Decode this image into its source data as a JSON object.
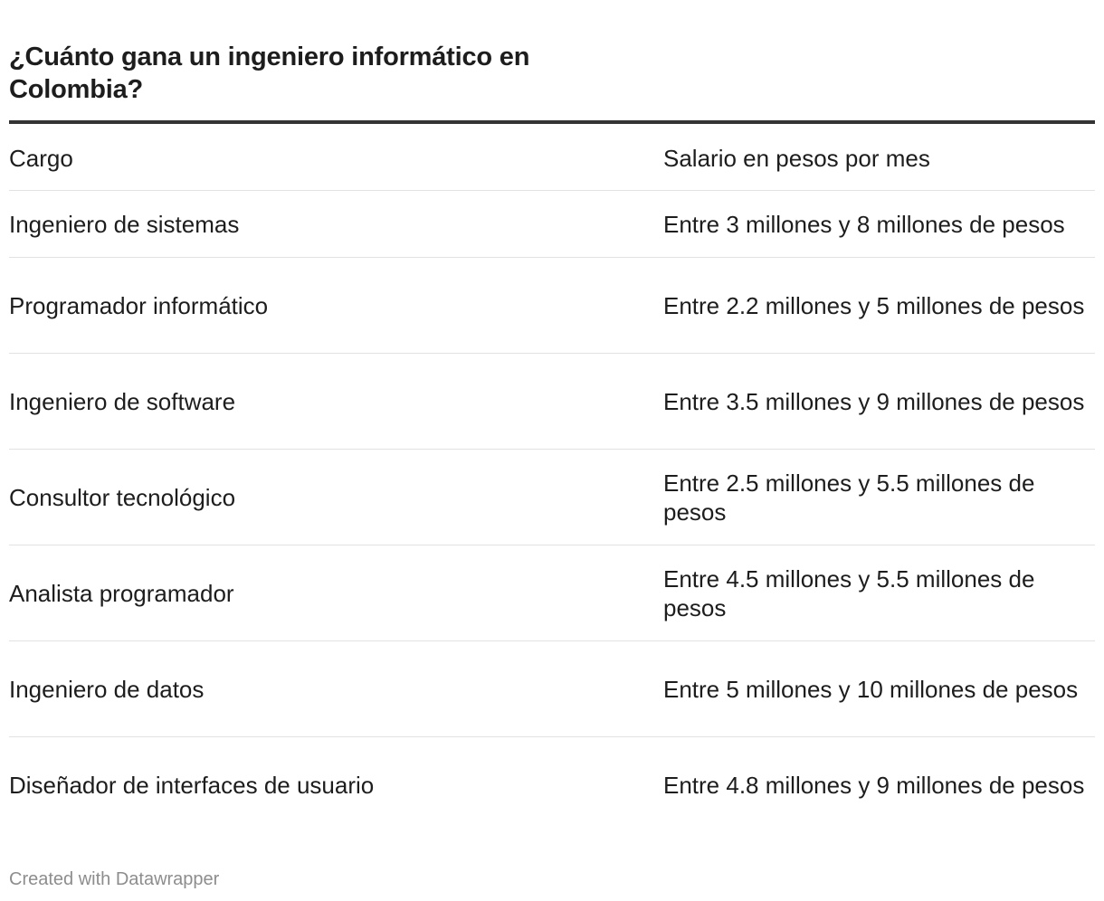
{
  "chart_data": {
    "type": "table",
    "title": "¿Cuánto gana un ingeniero informático en Colombia?",
    "columns": [
      "Cargo",
      "Salario en pesos por mes"
    ],
    "rows": [
      [
        "Ingeniero de sistemas",
        "Entre 3 millones y 8 millones de pesos"
      ],
      [
        "Programador informático",
        "Entre 2.2 millones y 5 millones de pesos"
      ],
      [
        "Ingeniero de software",
        "Entre 3.5 millones y 9 millones de pesos"
      ],
      [
        "Consultor tecnológico",
        "Entre 2.5 millones y 5.5 millones de pesos"
      ],
      [
        "Analista programador",
        "Entre 4.5 millones y 5.5 millones de pesos"
      ],
      [
        "Ingeniero de datos",
        "Entre 5 millones y 10 millones de pesos"
      ],
      [
        "Diseñador de interfaces de usuario",
        "Entre 4.8 millones y 9 millones de pesos"
      ]
    ],
    "footer": "Created with Datawrapper"
  }
}
